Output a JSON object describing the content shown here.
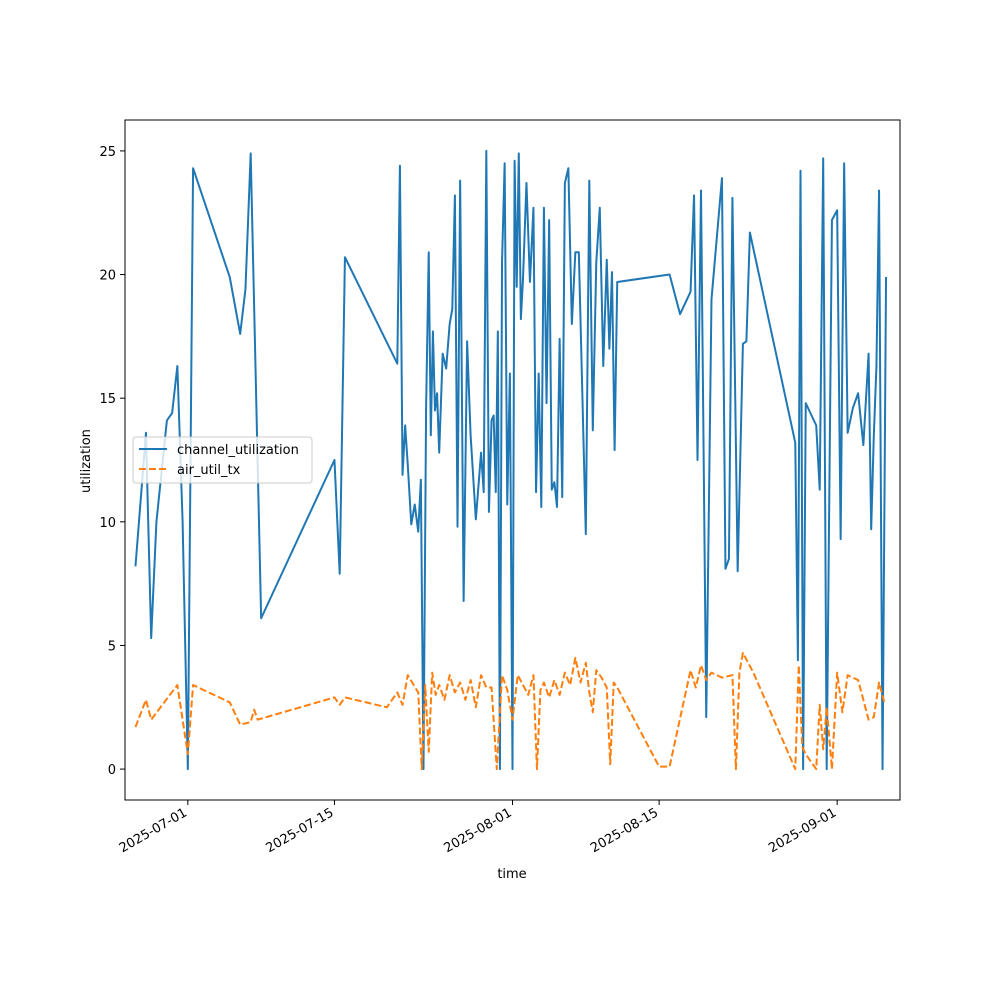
{
  "chart_data": {
    "type": "line",
    "title": "",
    "xlabel": "time",
    "ylabel": "utilization",
    "x_type": "date",
    "xlim": [
      "2025-06-25",
      "2025-09-07"
    ],
    "ylim": [
      -1.25,
      26.25
    ],
    "xticks": [
      "2025-07-01",
      "2025-07-15",
      "2025-08-01",
      "2025-08-15",
      "2025-09-01"
    ],
    "yticks": [
      0,
      5,
      10,
      15,
      20,
      25
    ],
    "grid": false,
    "legend_position": "center-left",
    "series": [
      {
        "name": "channel_utilization",
        "color": "#1f77b4",
        "style": "solid",
        "points": [
          [
            "2025-06-26",
            8.2
          ],
          [
            "2025-06-27",
            13.6
          ],
          [
            "2025-06-27",
            5.3
          ],
          [
            "2025-06-28",
            10.0
          ],
          [
            "2025-06-29",
            14.1
          ],
          [
            "2025-06-29",
            14.4
          ],
          [
            "2025-06-30",
            16.3
          ],
          [
            "2025-06-30",
            10.0
          ],
          [
            "2025-07-01",
            0.0
          ],
          [
            "2025-07-01",
            24.3
          ],
          [
            "2025-07-05",
            19.9
          ],
          [
            "2025-07-06",
            17.6
          ],
          [
            "2025-07-06",
            19.4
          ],
          [
            "2025-07-07",
            24.9
          ],
          [
            "2025-07-08",
            6.1
          ],
          [
            "2025-07-15",
            12.5
          ],
          [
            "2025-07-15",
            7.9
          ],
          [
            "2025-07-16",
            20.7
          ],
          [
            "2025-07-21",
            16.4
          ],
          [
            "2025-07-21",
            24.4
          ],
          [
            "2025-07-21",
            11.9
          ],
          [
            "2025-07-21",
            13.9
          ],
          [
            "2025-07-22",
            12.3
          ],
          [
            "2025-07-22",
            9.9
          ],
          [
            "2025-07-22",
            10.7
          ],
          [
            "2025-07-23",
            9.6
          ],
          [
            "2025-07-23",
            11.7
          ],
          [
            "2025-07-23",
            0.0
          ],
          [
            "2025-07-23",
            14.6
          ],
          [
            "2025-07-24",
            20.9
          ],
          [
            "2025-07-24",
            13.5
          ],
          [
            "2025-07-24",
            17.7
          ],
          [
            "2025-07-24",
            14.5
          ],
          [
            "2025-07-24",
            15.2
          ],
          [
            "2025-07-25",
            12.8
          ],
          [
            "2025-07-25",
            16.8
          ],
          [
            "2025-07-25",
            16.2
          ],
          [
            "2025-07-26",
            18.0
          ],
          [
            "2025-07-26",
            18.6
          ],
          [
            "2025-07-26",
            23.2
          ],
          [
            "2025-07-26",
            9.8
          ],
          [
            "2025-07-27",
            23.8
          ],
          [
            "2025-07-27",
            6.8
          ],
          [
            "2025-07-27",
            17.3
          ],
          [
            "2025-07-28",
            13.5
          ],
          [
            "2025-07-28",
            10.1
          ],
          [
            "2025-07-29",
            12.8
          ],
          [
            "2025-07-29",
            11.2
          ],
          [
            "2025-07-29",
            25.0
          ],
          [
            "2025-07-29",
            10.4
          ],
          [
            "2025-07-30",
            14.1
          ],
          [
            "2025-07-30",
            14.3
          ],
          [
            "2025-07-30",
            11.2
          ],
          [
            "2025-07-30",
            17.7
          ],
          [
            "2025-07-30",
            0.0
          ],
          [
            "2025-07-31",
            20.5
          ],
          [
            "2025-07-31",
            24.5
          ],
          [
            "2025-07-31",
            10.7
          ],
          [
            "2025-07-31",
            16.0
          ],
          [
            "2025-08-01",
            0.0
          ],
          [
            "2025-08-01",
            24.6
          ],
          [
            "2025-08-01",
            19.5
          ],
          [
            "2025-08-01",
            24.9
          ],
          [
            "2025-08-01",
            18.2
          ],
          [
            "2025-08-02",
            19.8
          ],
          [
            "2025-08-02",
            23.7
          ],
          [
            "2025-08-02",
            19.7
          ],
          [
            "2025-08-03",
            22.7
          ],
          [
            "2025-08-03",
            11.2
          ],
          [
            "2025-08-03",
            16.0
          ],
          [
            "2025-08-03",
            10.6
          ],
          [
            "2025-08-04",
            22.7
          ],
          [
            "2025-08-04",
            14.8
          ],
          [
            "2025-08-04",
            22.2
          ],
          [
            "2025-08-04",
            11.3
          ],
          [
            "2025-08-05",
            11.6
          ],
          [
            "2025-08-05",
            10.6
          ],
          [
            "2025-08-05",
            17.4
          ],
          [
            "2025-08-05",
            11.0
          ],
          [
            "2025-08-06",
            23.7
          ],
          [
            "2025-08-06",
            24.3
          ],
          [
            "2025-08-06",
            18.0
          ],
          [
            "2025-08-07",
            20.9
          ],
          [
            "2025-08-07",
            20.9
          ],
          [
            "2025-08-07",
            15.2
          ],
          [
            "2025-08-08",
            9.5
          ],
          [
            "2025-08-08",
            23.8
          ],
          [
            "2025-08-08",
            13.7
          ],
          [
            "2025-08-09",
            20.5
          ],
          [
            "2025-08-09",
            22.7
          ],
          [
            "2025-08-09",
            16.3
          ],
          [
            "2025-08-10",
            20.6
          ],
          [
            "2025-08-10",
            17.0
          ],
          [
            "2025-08-10",
            20.1
          ],
          [
            "2025-08-10",
            12.9
          ],
          [
            "2025-08-11",
            19.7
          ],
          [
            "2025-08-16",
            20.0
          ],
          [
            "2025-08-17",
            18.4
          ],
          [
            "2025-08-18",
            19.3
          ],
          [
            "2025-08-18",
            23.2
          ],
          [
            "2025-08-18",
            12.5
          ],
          [
            "2025-08-19",
            23.4
          ],
          [
            "2025-08-19",
            2.1
          ],
          [
            "2025-08-20",
            19.0
          ],
          [
            "2025-08-21",
            23.9
          ],
          [
            "2025-08-21",
            8.1
          ],
          [
            "2025-08-21",
            8.5
          ],
          [
            "2025-08-22",
            23.1
          ],
          [
            "2025-08-22",
            8.0
          ],
          [
            "2025-08-23",
            17.2
          ],
          [
            "2025-08-23",
            17.3
          ],
          [
            "2025-08-23",
            21.7
          ],
          [
            "2025-08-28",
            13.2
          ],
          [
            "2025-08-28",
            4.4
          ],
          [
            "2025-08-28",
            24.2
          ],
          [
            "2025-08-28",
            0.0
          ],
          [
            "2025-08-29",
            14.8
          ],
          [
            "2025-08-30",
            13.9
          ],
          [
            "2025-08-30",
            11.3
          ],
          [
            "2025-08-30",
            24.7
          ],
          [
            "2025-08-31",
            0.0
          ],
          [
            "2025-08-31",
            22.2
          ],
          [
            "2025-09-01",
            22.6
          ],
          [
            "2025-09-01",
            9.3
          ],
          [
            "2025-09-01",
            24.5
          ],
          [
            "2025-09-02",
            13.6
          ],
          [
            "2025-09-02",
            14.6
          ],
          [
            "2025-09-03",
            15.2
          ],
          [
            "2025-09-03",
            13.1
          ],
          [
            "2025-09-04",
            16.8
          ],
          [
            "2025-09-04",
            9.7
          ],
          [
            "2025-09-04",
            13.5
          ],
          [
            "2025-09-04",
            16.3
          ],
          [
            "2025-09-05",
            23.4
          ],
          [
            "2025-09-05",
            0.0
          ],
          [
            "2025-09-05",
            19.9
          ]
        ]
      },
      {
        "name": "air_util_tx",
        "color": "#ff7f0e",
        "style": "dashed",
        "points": [
          [
            "2025-06-26",
            1.7
          ],
          [
            "2025-06-27",
            2.8
          ],
          [
            "2025-06-27",
            2.0
          ],
          [
            "2025-06-30",
            3.4
          ],
          [
            "2025-07-01",
            0.6
          ],
          [
            "2025-07-01",
            3.4
          ],
          [
            "2025-07-05",
            2.7
          ],
          [
            "2025-07-06",
            1.8
          ],
          [
            "2025-07-07",
            1.9
          ],
          [
            "2025-07-07",
            2.4
          ],
          [
            "2025-07-07",
            2.0
          ],
          [
            "2025-07-15",
            2.9
          ],
          [
            "2025-07-15",
            2.6
          ],
          [
            "2025-07-16",
            2.9
          ],
          [
            "2025-07-20",
            2.5
          ],
          [
            "2025-07-21",
            3.1
          ],
          [
            "2025-07-21",
            2.6
          ],
          [
            "2025-07-22",
            3.8
          ],
          [
            "2025-07-23",
            3.1
          ],
          [
            "2025-07-23",
            0.0
          ],
          [
            "2025-07-23",
            3.4
          ],
          [
            "2025-07-24",
            0.7
          ],
          [
            "2025-07-24",
            3.9
          ],
          [
            "2025-07-24",
            3.0
          ],
          [
            "2025-07-25",
            3.4
          ],
          [
            "2025-07-25",
            2.8
          ],
          [
            "2025-07-26",
            3.8
          ],
          [
            "2025-07-26",
            3.1
          ],
          [
            "2025-07-27",
            3.5
          ],
          [
            "2025-07-27",
            2.8
          ],
          [
            "2025-07-28",
            3.6
          ],
          [
            "2025-07-28",
            2.5
          ],
          [
            "2025-07-29",
            3.8
          ],
          [
            "2025-07-29",
            3.3
          ],
          [
            "2025-07-30",
            3.3
          ],
          [
            "2025-07-30",
            0.0
          ],
          [
            "2025-07-31",
            3.8
          ],
          [
            "2025-07-31",
            3.2
          ],
          [
            "2025-08-01",
            2.0
          ],
          [
            "2025-08-01",
            3.8
          ],
          [
            "2025-08-02",
            3.4
          ],
          [
            "2025-08-02",
            3.0
          ],
          [
            "2025-08-03",
            3.8
          ],
          [
            "2025-08-03",
            0.0
          ],
          [
            "2025-08-03",
            3.2
          ],
          [
            "2025-08-04",
            3.5
          ],
          [
            "2025-08-04",
            2.9
          ],
          [
            "2025-08-05",
            3.6
          ],
          [
            "2025-08-05",
            3.0
          ],
          [
            "2025-08-06",
            3.9
          ],
          [
            "2025-08-06",
            3.4
          ],
          [
            "2025-08-07",
            4.5
          ],
          [
            "2025-08-07",
            3.5
          ],
          [
            "2025-08-08",
            4.3
          ],
          [
            "2025-08-08",
            3.1
          ],
          [
            "2025-08-08",
            2.3
          ],
          [
            "2025-08-09",
            4.0
          ],
          [
            "2025-08-09",
            3.7
          ],
          [
            "2025-08-10",
            3.3
          ],
          [
            "2025-08-10",
            0.2
          ],
          [
            "2025-08-10",
            3.5
          ],
          [
            "2025-08-11",
            3.3
          ],
          [
            "2025-08-15",
            0.1
          ],
          [
            "2025-08-16",
            0.1
          ],
          [
            "2025-08-18",
            4.0
          ],
          [
            "2025-08-18",
            3.3
          ],
          [
            "2025-08-19",
            4.2
          ],
          [
            "2025-08-19",
            3.6
          ],
          [
            "2025-08-20",
            3.9
          ],
          [
            "2025-08-21",
            3.7
          ],
          [
            "2025-08-22",
            3.8
          ],
          [
            "2025-08-22",
            0.0
          ],
          [
            "2025-08-22",
            3.9
          ],
          [
            "2025-08-23",
            4.7
          ],
          [
            "2025-08-24",
            3.9
          ],
          [
            "2025-08-28",
            0.0
          ],
          [
            "2025-08-28",
            4.2
          ],
          [
            "2025-08-28",
            0.9
          ],
          [
            "2025-08-29",
            0.6
          ],
          [
            "2025-08-30",
            0.0
          ],
          [
            "2025-08-30",
            2.6
          ],
          [
            "2025-08-30",
            0.8
          ],
          [
            "2025-08-31",
            2.5
          ],
          [
            "2025-08-31",
            0.0
          ],
          [
            "2025-09-01",
            3.9
          ],
          [
            "2025-09-01",
            2.3
          ],
          [
            "2025-09-02",
            3.8
          ],
          [
            "2025-09-03",
            3.6
          ],
          [
            "2025-09-04",
            2.0
          ],
          [
            "2025-09-04",
            2.1
          ],
          [
            "2025-09-05",
            3.5
          ],
          [
            "2025-09-05",
            2.7
          ]
        ]
      }
    ]
  }
}
